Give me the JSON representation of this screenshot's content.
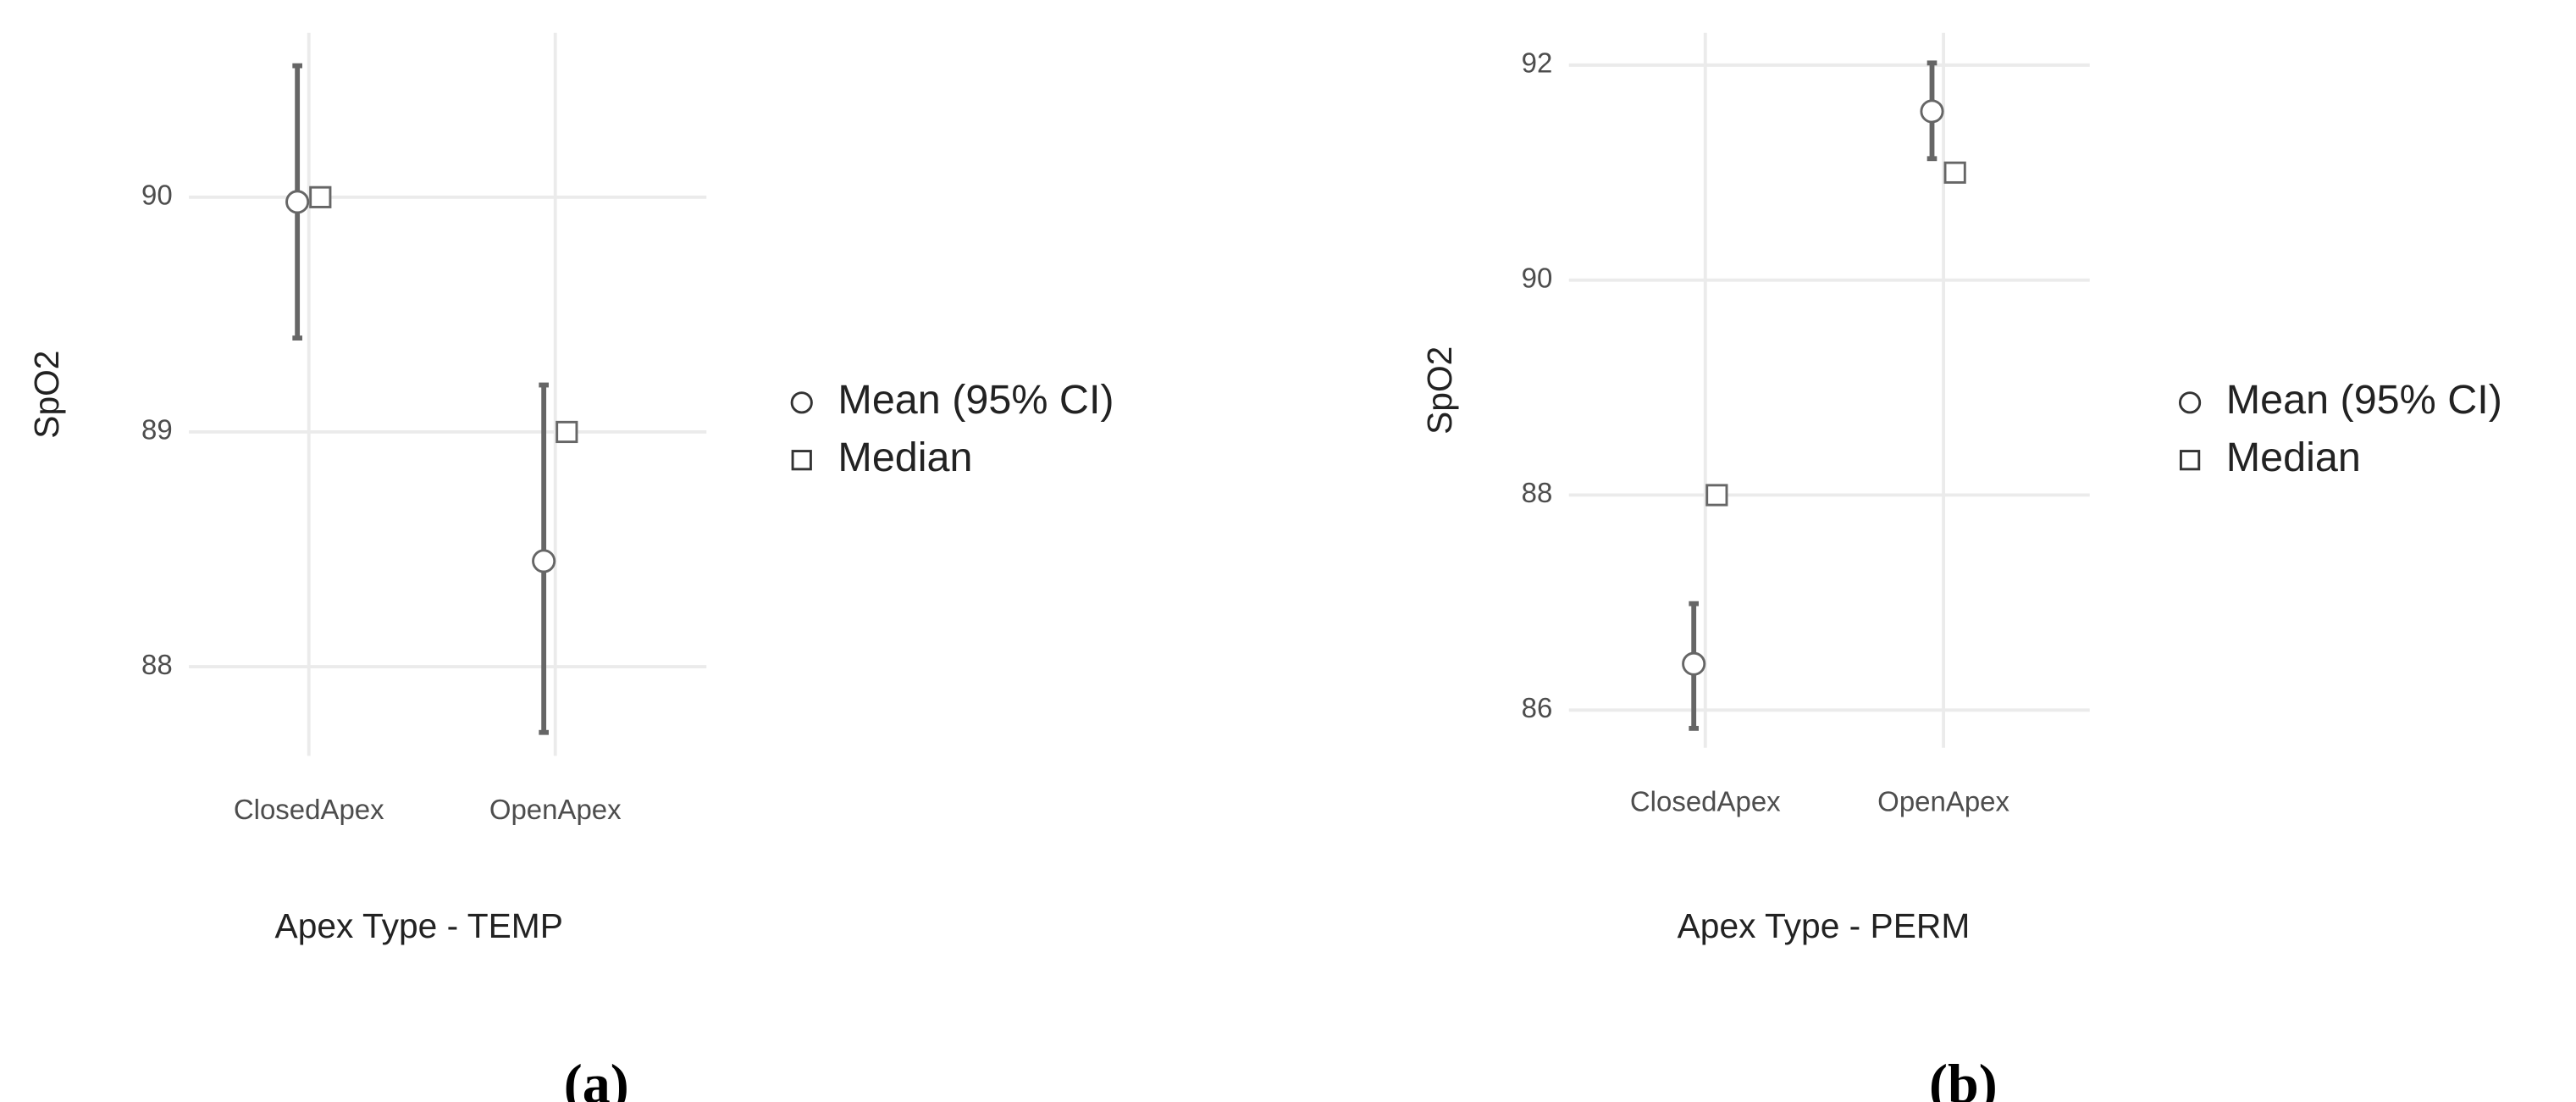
{
  "chart_data": [
    {
      "type": "pointrange",
      "panel_label": "(a)",
      "x_label": "Apex Type - TEMP",
      "y_label": "SpO2",
      "categories": [
        "ClosedApex",
        "OpenApex"
      ],
      "series": [
        {
          "name": "Mean (95% CI)",
          "marker": "circle",
          "color": "#666666",
          "values": [
            89.98,
            88.45
          ],
          "lower": [
            89.4,
            87.72
          ],
          "upper": [
            90.56,
            89.2
          ]
        },
        {
          "name": "Median",
          "marker": "square",
          "color": "#666666",
          "values": [
            90,
            89
          ]
        }
      ],
      "ylim": [
        87.62,
        90.7
      ],
      "yticks": [
        88,
        89,
        90
      ],
      "grid": true,
      "legend": "right"
    },
    {
      "type": "pointrange",
      "panel_label": "(b)",
      "x_label": "Apex Type - PERM",
      "y_label": "SpO2",
      "categories": [
        "ClosedApex",
        "OpenApex"
      ],
      "series": [
        {
          "name": "Mean (95% CI)",
          "marker": "circle",
          "color": "#666666",
          "values": [
            86.43,
            91.57
          ],
          "lower": [
            85.83,
            91.13
          ],
          "upper": [
            86.99,
            92.02
          ]
        },
        {
          "name": "Median",
          "marker": "square",
          "color": "#666666",
          "values": [
            88,
            91
          ]
        }
      ],
      "ylim": [
        85.65,
        92.3
      ],
      "yticks": [
        86,
        88,
        90,
        92
      ],
      "grid": true,
      "legend": "right"
    }
  ]
}
